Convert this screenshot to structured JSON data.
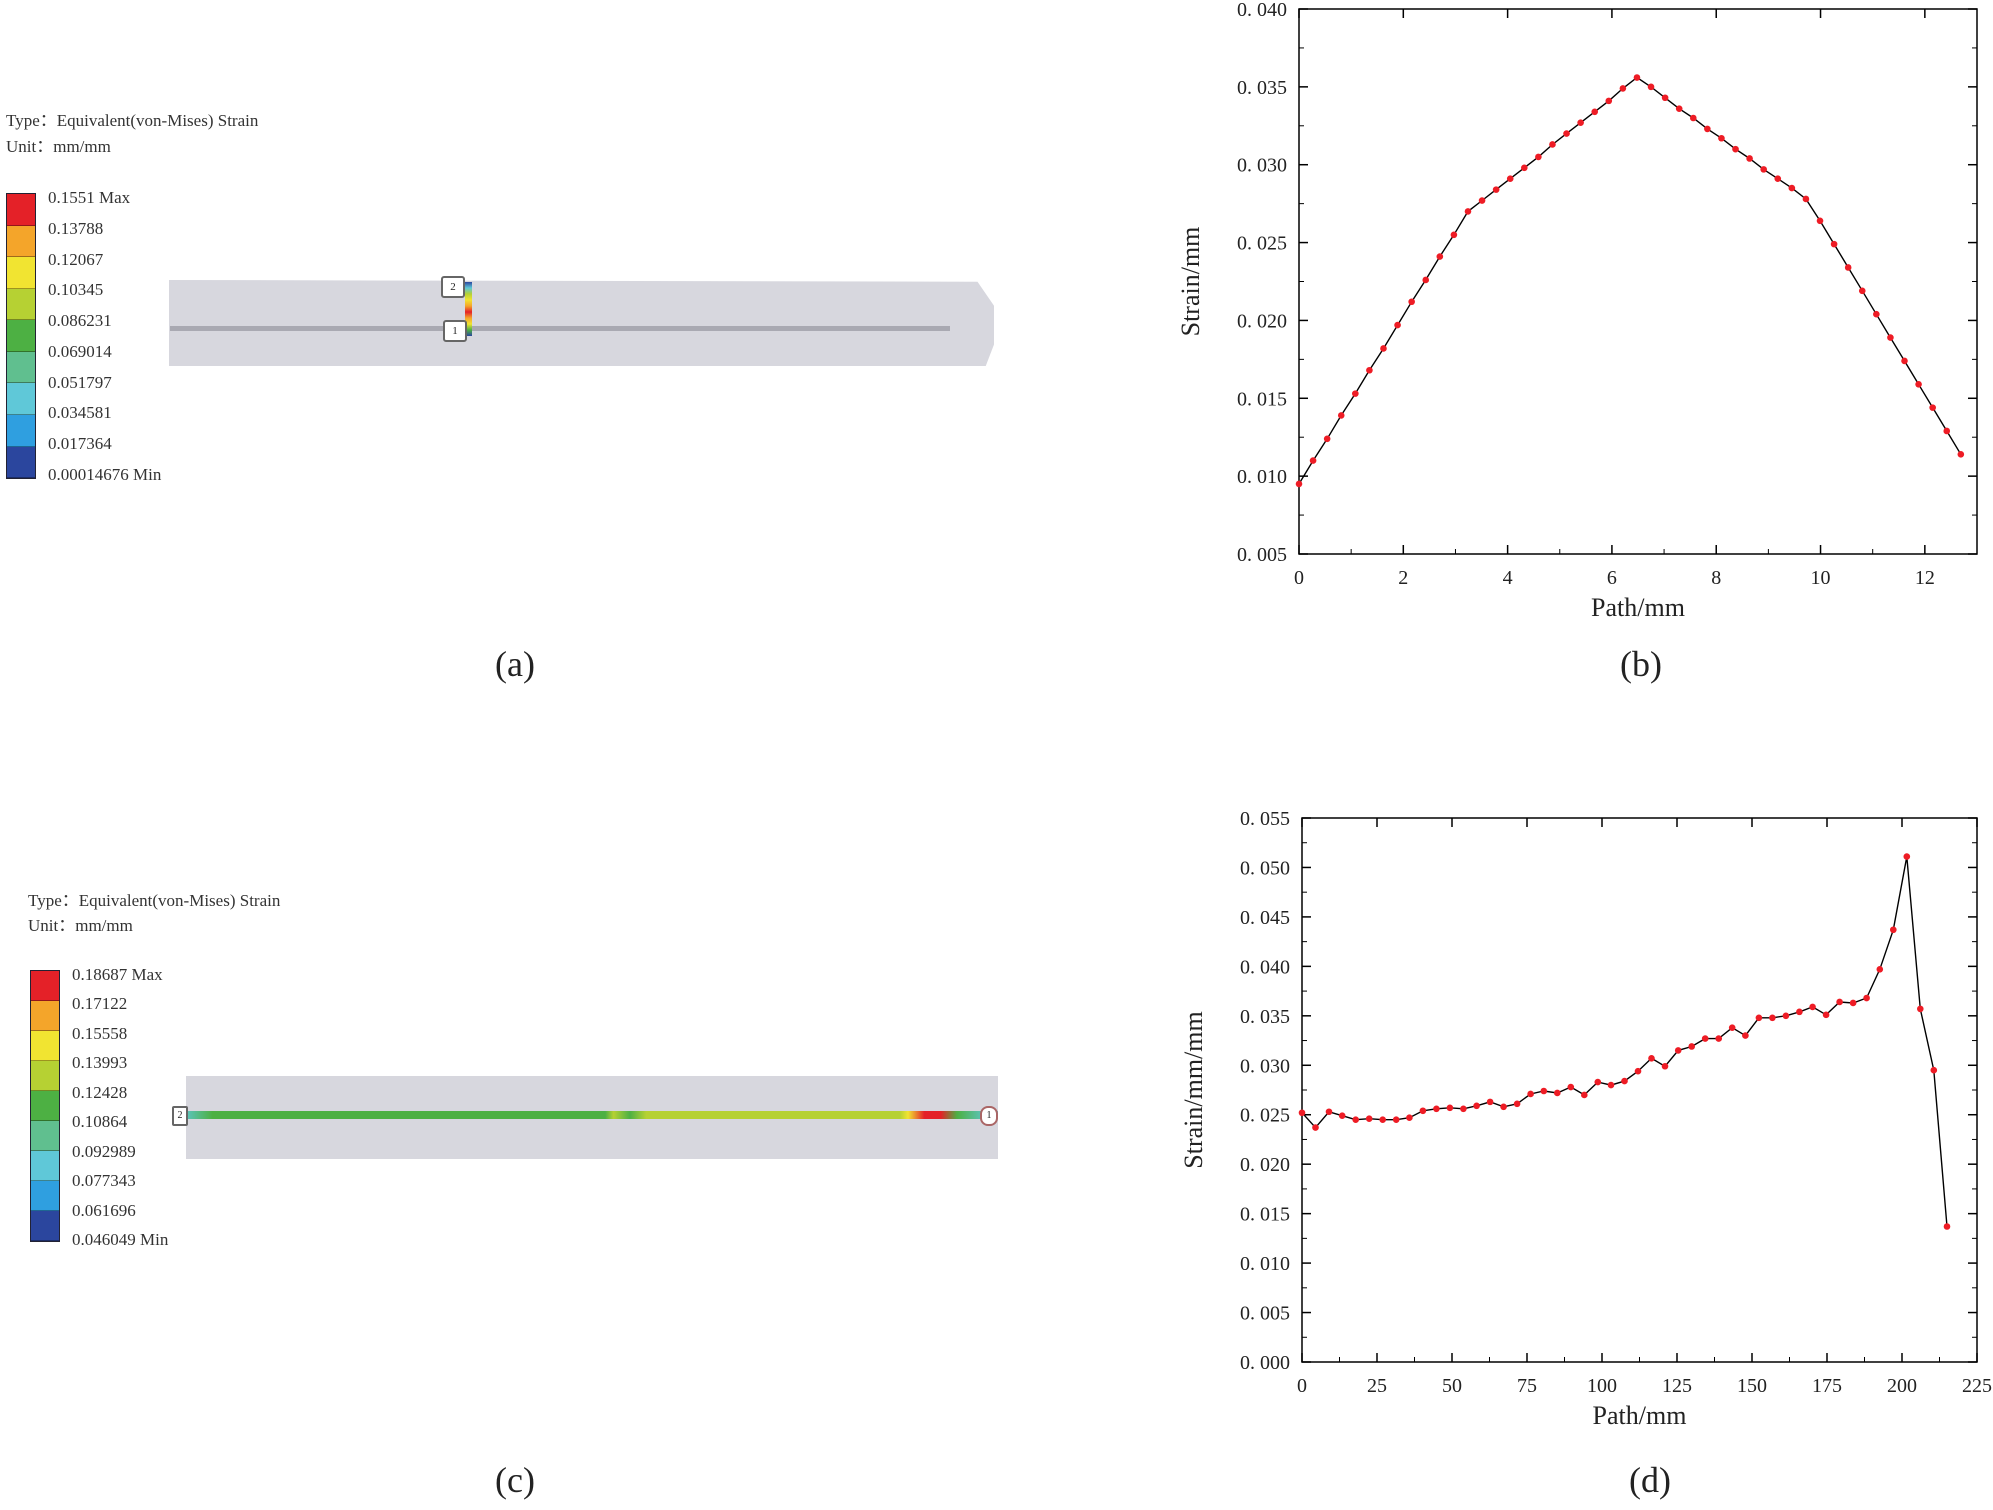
{
  "panels": {
    "a": {
      "label": "(a)",
      "type_line": "Type：Equivalent(von-Mises) Strain",
      "unit_line": "Unit：mm/mm",
      "legend": [
        "0.1551 Max",
        "0.13788",
        "0.12067",
        "0.10345",
        "0.086231",
        "0.069014",
        "0.051797",
        "0.034581",
        "0.017364",
        "0.00014676 Min"
      ],
      "probe_labels": [
        "2",
        "1"
      ]
    },
    "b": {
      "label": "(b)"
    },
    "c": {
      "label": "(c)",
      "type_line": "Type：Equivalent(von-Mises) Strain",
      "unit_line": "Unit：mm/mm",
      "legend": [
        "0.18687 Max",
        "0.17122",
        "0.15558",
        "0.13993",
        "0.12428",
        "0.10864",
        "0.092989",
        "0.077343",
        "0.061696",
        "0.046049 Min"
      ],
      "probe_labels": [
        "2",
        "1"
      ]
    },
    "d": {
      "label": "(d)"
    }
  },
  "legend_colors": [
    "#e42128",
    "#f4a52a",
    "#f1e431",
    "#b6d133",
    "#4db043",
    "#60bf8f",
    "#5fc8d8",
    "#2f9fe0",
    "#2b469e"
  ],
  "chart_data": [
    {
      "type": "line",
      "xlabel": "Path/mm",
      "ylabel": "Strain/mm",
      "xlim": [
        0,
        13
      ],
      "ylim": [
        0.005,
        0.04
      ],
      "xticks": [
        0,
        2,
        4,
        6,
        8,
        10,
        12
      ],
      "yticks": [
        "0.005",
        "0.010",
        "0.015",
        "0.020",
        "0.025",
        "0.030",
        "0.035",
        "0.040"
      ],
      "grid": false,
      "line_color": "#000000",
      "marker_color": "#ee1c25",
      "x": [
        0,
        0.27,
        0.54,
        0.81,
        1.08,
        1.35,
        1.62,
        1.89,
        2.16,
        2.43,
        2.7,
        2.97,
        3.24,
        3.51,
        3.78,
        4.05,
        4.32,
        4.59,
        4.86,
        5.13,
        5.4,
        5.67,
        5.94,
        6.21,
        6.48,
        6.75,
        7.02,
        7.29,
        7.56,
        7.83,
        8.1,
        8.37,
        8.64,
        8.91,
        9.18,
        9.45,
        9.72,
        9.99,
        10.26,
        10.53,
        10.8,
        11.07,
        11.34,
        11.61,
        11.88,
        12.15,
        12.42,
        12.69
      ],
      "y": [
        0.0095,
        0.011,
        0.0124,
        0.0139,
        0.0153,
        0.0168,
        0.0182,
        0.0197,
        0.0212,
        0.0226,
        0.0241,
        0.0255,
        0.027,
        0.0277,
        0.0284,
        0.0291,
        0.0298,
        0.0305,
        0.0313,
        0.032,
        0.0327,
        0.0334,
        0.0341,
        0.0349,
        0.0356,
        0.035,
        0.0343,
        0.0336,
        0.033,
        0.0323,
        0.0317,
        0.031,
        0.0304,
        0.0297,
        0.0291,
        0.0285,
        0.0278,
        0.0264,
        0.0249,
        0.0234,
        0.0219,
        0.0204,
        0.0189,
        0.0174,
        0.0159,
        0.0144,
        0.0129,
        0.0114
      ]
    },
    {
      "type": "line",
      "xlabel": "Path/mm",
      "ylabel": "Strain/mm/mm",
      "xlim": [
        0,
        225
      ],
      "ylim": [
        0.0,
        0.055
      ],
      "xticks": [
        0,
        25,
        50,
        75,
        100,
        125,
        150,
        175,
        200,
        225
      ],
      "yticks": [
        "0.000",
        "0.005",
        "0.010",
        "0.015",
        "0.020",
        "0.025",
        "0.030",
        "0.035",
        "0.040",
        "0.045",
        "0.050",
        "0.055"
      ],
      "grid": false,
      "line_color": "#000000",
      "marker_color": "#ee1c25",
      "x": [
        0,
        4.5,
        9,
        13.4,
        17.9,
        22.4,
        26.9,
        31.4,
        35.8,
        40.3,
        44.8,
        49.3,
        53.8,
        58.2,
        62.7,
        67.2,
        71.7,
        76.2,
        80.6,
        85.1,
        89.6,
        94.1,
        98.6,
        103,
        107.5,
        112,
        116.5,
        121,
        125.4,
        129.9,
        134.4,
        138.9,
        143.4,
        147.8,
        152.3,
        156.8,
        161.3,
        165.8,
        170.2,
        174.7,
        179.2,
        183.7,
        188.2,
        192.6,
        197.1,
        201.6,
        206.1,
        210.6,
        215
      ],
      "y": [
        0.0252,
        0.0237,
        0.0253,
        0.0249,
        0.0245,
        0.0246,
        0.0245,
        0.0245,
        0.0247,
        0.0254,
        0.0256,
        0.0257,
        0.0256,
        0.0259,
        0.0263,
        0.0258,
        0.0261,
        0.0271,
        0.0274,
        0.0272,
        0.0278,
        0.027,
        0.0283,
        0.028,
        0.0284,
        0.0294,
        0.0307,
        0.0299,
        0.0315,
        0.0319,
        0.0327,
        0.0327,
        0.0338,
        0.033,
        0.0348,
        0.0348,
        0.035,
        0.0354,
        0.0359,
        0.0351,
        0.0364,
        0.0363,
        0.0368,
        0.0397,
        0.0437,
        0.0511,
        0.0357,
        0.0295,
        0.0137
      ]
    }
  ]
}
